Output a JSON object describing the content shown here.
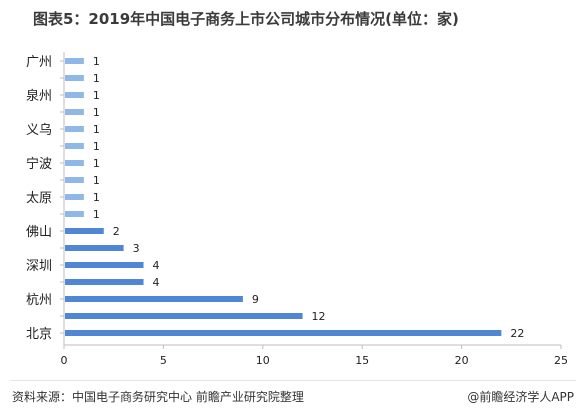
{
  "title": "图表5：2019年中国电子商务上市公司城市分布情况(单位：家)",
  "footer": {
    "source": "资料来源：中国电子商务研究中心 前瞻产业研究院整理",
    "brand": "@前瞻经济学人APP"
  },
  "colors": {
    "light_bar": "#8fb8e8",
    "dark_bar": "#4f86d6",
    "axis": "#bdbdbd",
    "text": "#222222"
  },
  "chart_data": {
    "type": "bar",
    "orientation": "horizontal",
    "categories": [
      "广州",
      "",
      "泉州",
      "",
      "义乌",
      "",
      "宁波",
      "",
      "太原",
      "",
      "佛山",
      "",
      "深圳",
      "",
      "杭州",
      "",
      "北京"
    ],
    "values": [
      1,
      1,
      1,
      1,
      1,
      1,
      1,
      1,
      1,
      1,
      2,
      3,
      4,
      4,
      9,
      12,
      22
    ],
    "xlim": [
      0,
      25
    ],
    "xticks": [
      0,
      5,
      10,
      15,
      20,
      25
    ],
    "grid": false,
    "title": "图表5：2019年中国电子商务上市公司城市分布情况(单位：家)"
  }
}
